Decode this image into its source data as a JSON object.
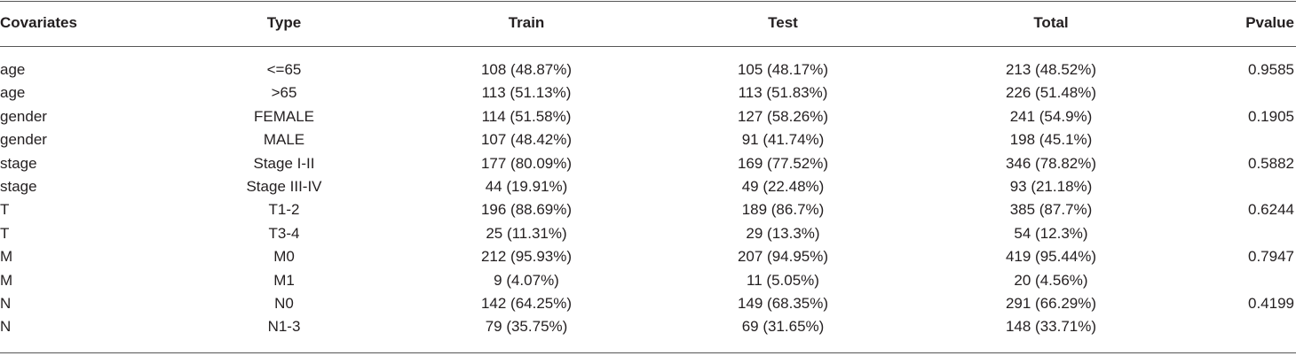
{
  "table": {
    "headers": [
      "Covariates",
      "Type",
      "Train",
      "Test",
      "Total",
      "Pvalue"
    ],
    "rows": [
      [
        "age",
        "<=65",
        "108 (48.87%)",
        "105 (48.17%)",
        "213 (48.52%)",
        "0.9585"
      ],
      [
        "age",
        ">65",
        "113 (51.13%)",
        "113 (51.83%)",
        "226 (51.48%)",
        ""
      ],
      [
        "gender",
        "FEMALE",
        "114 (51.58%)",
        "127 (58.26%)",
        "241 (54.9%)",
        "0.1905"
      ],
      [
        "gender",
        "MALE",
        "107 (48.42%)",
        "91 (41.74%)",
        "198 (45.1%)",
        ""
      ],
      [
        "stage",
        "Stage I-II",
        "177 (80.09%)",
        "169 (77.52%)",
        "346 (78.82%)",
        "0.5882"
      ],
      [
        "stage",
        "Stage III-IV",
        "44 (19.91%)",
        "49 (22.48%)",
        "93 (21.18%)",
        ""
      ],
      [
        "T",
        "T1-2",
        "196 (88.69%)",
        "189 (86.7%)",
        "385 (87.7%)",
        "0.6244"
      ],
      [
        "T",
        "T3-4",
        "25 (11.31%)",
        "29 (13.3%)",
        "54 (12.3%)",
        ""
      ],
      [
        "M",
        "M0",
        "212 (95.93%)",
        "207 (94.95%)",
        "419 (95.44%)",
        "0.7947"
      ],
      [
        "M",
        "M1",
        "9 (4.07%)",
        "11 (5.05%)",
        "20 (4.56%)",
        ""
      ],
      [
        "N",
        "N0",
        "142 (64.25%)",
        "149 (68.35%)",
        "291 (66.29%)",
        "0.4199"
      ],
      [
        "N",
        "N1-3",
        "79 (35.75%)",
        "69 (31.65%)",
        "148 (33.71%)",
        ""
      ]
    ]
  }
}
